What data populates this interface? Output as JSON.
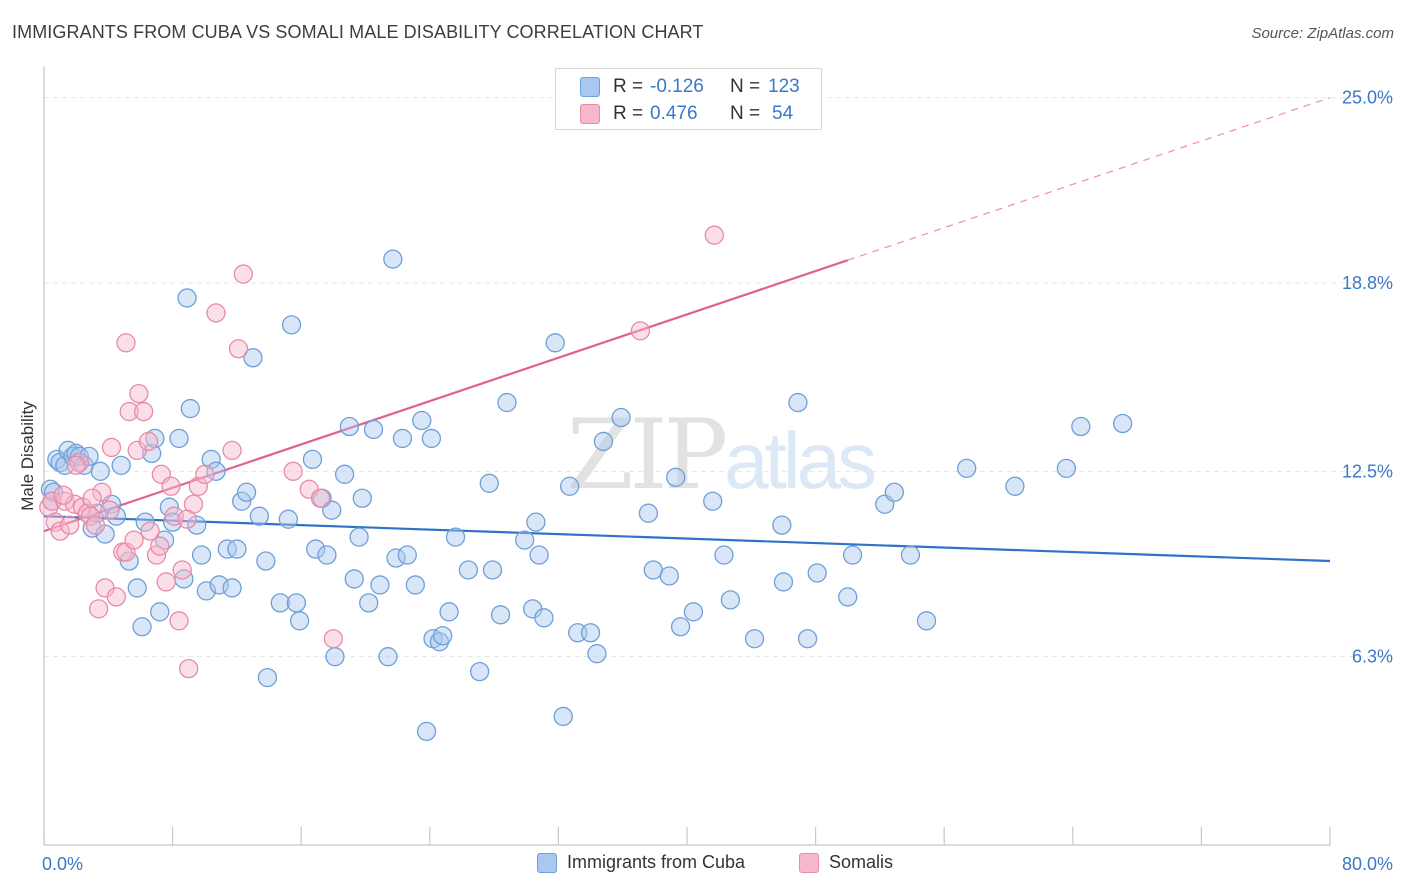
{
  "title": "IMMIGRANTS FROM CUBA VS SOMALI MALE DISABILITY CORRELATION CHART",
  "source": "Source: ZipAtlas.com",
  "watermark": "ZIPatlas",
  "colors": {
    "cuba_fill": "#a8c8f0",
    "cuba_stroke": "#6f9fd8",
    "cuba_line": "#2f72c8",
    "somali_fill": "#f6b8cc",
    "somali_stroke": "#e88aa8",
    "somali_line": "#e0608f",
    "value_text": "#3a78c8",
    "grid": "#e6e6e6"
  },
  "stats": {
    "cuba": {
      "r_label": "R =",
      "r_value": "-0.126",
      "n_label": "N =",
      "n_value": "123"
    },
    "somali": {
      "r_label": "R =",
      "r_value": "0.476",
      "n_label": "N =",
      "n_value": "54"
    }
  },
  "legend": {
    "cuba": "Immigrants from Cuba",
    "somali": "Somalis"
  },
  "chart_data": {
    "type": "scatter",
    "title": "IMMIGRANTS FROM CUBA VS SOMALI MALE DISABILITY CORRELATION CHART",
    "xlabel": "",
    "ylabel": "Male Disability",
    "xlim": [
      0,
      80
    ],
    "ylim": [
      0,
      25.8
    ],
    "x_tick_labels": [
      "0.0%",
      "80.0%"
    ],
    "y_ticks": [
      6.3,
      12.5,
      18.8,
      25.0
    ],
    "y_tick_labels": [
      "6.3%",
      "12.5%",
      "18.8%",
      "25.0%"
    ],
    "grid": true,
    "legend_position": "bottom",
    "series": [
      {
        "name": "Immigrants from Cuba",
        "trend": {
          "x": [
            0,
            80
          ],
          "y": [
            11.0,
            9.5
          ],
          "dashed": false
        },
        "points": [
          [
            0.4,
            11.9
          ],
          [
            0.5,
            11.5
          ],
          [
            0.6,
            11.8
          ],
          [
            0.8,
            12.9
          ],
          [
            1.0,
            12.8
          ],
          [
            1.3,
            12.7
          ],
          [
            1.5,
            13.2
          ],
          [
            1.8,
            13.0
          ],
          [
            2.0,
            13.1
          ],
          [
            2.2,
            13.0
          ],
          [
            2.5,
            12.7
          ],
          [
            2.8,
            13.0
          ],
          [
            3.0,
            10.6
          ],
          [
            3.3,
            11.1
          ],
          [
            3.5,
            12.5
          ],
          [
            3.8,
            10.4
          ],
          [
            4.2,
            11.4
          ],
          [
            4.5,
            11.0
          ],
          [
            4.8,
            12.7
          ],
          [
            5.3,
            9.5
          ],
          [
            5.8,
            8.6
          ],
          [
            6.1,
            7.3
          ],
          [
            6.3,
            10.8
          ],
          [
            6.7,
            13.1
          ],
          [
            6.9,
            13.6
          ],
          [
            7.2,
            7.8
          ],
          [
            7.5,
            10.2
          ],
          [
            7.8,
            11.3
          ],
          [
            8.0,
            10.8
          ],
          [
            8.4,
            13.6
          ],
          [
            8.7,
            8.9
          ],
          [
            8.9,
            18.3
          ],
          [
            9.1,
            14.6
          ],
          [
            9.5,
            10.7
          ],
          [
            9.8,
            9.7
          ],
          [
            10.1,
            8.5
          ],
          [
            10.4,
            12.9
          ],
          [
            10.7,
            12.5
          ],
          [
            10.9,
            8.7
          ],
          [
            11.4,
            9.9
          ],
          [
            11.7,
            8.6
          ],
          [
            12.0,
            9.9
          ],
          [
            12.3,
            11.5
          ],
          [
            12.6,
            11.8
          ],
          [
            13.0,
            16.3
          ],
          [
            13.4,
            11.0
          ],
          [
            13.8,
            9.5
          ],
          [
            13.9,
            5.6
          ],
          [
            14.7,
            8.1
          ],
          [
            15.2,
            10.9
          ],
          [
            15.4,
            17.4
          ],
          [
            15.7,
            8.1
          ],
          [
            15.9,
            7.5
          ],
          [
            16.7,
            12.9
          ],
          [
            16.9,
            9.9
          ],
          [
            17.3,
            11.6
          ],
          [
            17.6,
            9.7
          ],
          [
            17.9,
            11.2
          ],
          [
            18.1,
            6.3
          ],
          [
            18.7,
            12.4
          ],
          [
            19.0,
            14.0
          ],
          [
            19.3,
            8.9
          ],
          [
            19.6,
            10.3
          ],
          [
            19.8,
            11.6
          ],
          [
            20.2,
            8.1
          ],
          [
            20.5,
            13.9
          ],
          [
            20.9,
            8.7
          ],
          [
            21.4,
            6.3
          ],
          [
            21.7,
            19.6
          ],
          [
            21.9,
            9.6
          ],
          [
            22.3,
            13.6
          ],
          [
            22.6,
            9.7
          ],
          [
            23.1,
            8.7
          ],
          [
            23.5,
            14.2
          ],
          [
            23.8,
            3.8
          ],
          [
            24.1,
            13.6
          ],
          [
            24.2,
            6.9
          ],
          [
            24.6,
            6.8
          ],
          [
            24.8,
            7.0
          ],
          [
            25.2,
            7.8
          ],
          [
            25.6,
            10.3
          ],
          [
            26.4,
            9.2
          ],
          [
            27.1,
            5.8
          ],
          [
            27.7,
            12.1
          ],
          [
            27.9,
            9.2
          ],
          [
            28.4,
            7.7
          ],
          [
            28.8,
            14.8
          ],
          [
            29.9,
            10.2
          ],
          [
            30.4,
            7.9
          ],
          [
            30.6,
            10.8
          ],
          [
            30.8,
            9.7
          ],
          [
            31.1,
            7.6
          ],
          [
            31.8,
            16.8
          ],
          [
            32.3,
            4.3
          ],
          [
            32.7,
            12.0
          ],
          [
            33.2,
            7.1
          ],
          [
            34.0,
            7.1
          ],
          [
            34.4,
            6.4
          ],
          [
            34.8,
            13.5
          ],
          [
            35.9,
            14.3
          ],
          [
            37.6,
            11.1
          ],
          [
            37.9,
            9.2
          ],
          [
            38.9,
            9.0
          ],
          [
            39.3,
            12.3
          ],
          [
            39.6,
            7.3
          ],
          [
            40.4,
            7.8
          ],
          [
            41.6,
            11.5
          ],
          [
            42.3,
            9.7
          ],
          [
            42.7,
            8.2
          ],
          [
            44.2,
            6.9
          ],
          [
            45.9,
            10.7
          ],
          [
            46.0,
            8.8
          ],
          [
            46.9,
            14.8
          ],
          [
            47.5,
            6.9
          ],
          [
            48.1,
            9.1
          ],
          [
            50.0,
            8.3
          ],
          [
            50.3,
            9.7
          ],
          [
            52.3,
            11.4
          ],
          [
            52.9,
            11.8
          ],
          [
            53.9,
            9.7
          ],
          [
            54.9,
            7.5
          ],
          [
            57.4,
            12.6
          ],
          [
            60.4,
            12.0
          ],
          [
            63.6,
            12.6
          ],
          [
            64.5,
            14.0
          ],
          [
            67.1,
            14.1
          ]
        ]
      },
      {
        "name": "Somalis",
        "trend": {
          "x": [
            0,
            80
          ],
          "y": [
            10.5,
            25.0
          ],
          "dashed_from_x": 50
        },
        "points": [
          [
            0.3,
            11.3
          ],
          [
            0.5,
            11.5
          ],
          [
            0.7,
            10.8
          ],
          [
            1.0,
            10.5
          ],
          [
            1.3,
            11.5
          ],
          [
            1.6,
            10.7
          ],
          [
            1.9,
            11.4
          ],
          [
            2.2,
            12.8
          ],
          [
            2.4,
            11.3
          ],
          [
            2.7,
            11.1
          ],
          [
            2.9,
            11.0
          ],
          [
            3.2,
            10.7
          ],
          [
            3.4,
            7.9
          ],
          [
            3.6,
            11.8
          ],
          [
            3.8,
            8.6
          ],
          [
            4.1,
            11.2
          ],
          [
            4.2,
            13.3
          ],
          [
            4.5,
            8.3
          ],
          [
            4.9,
            9.8
          ],
          [
            5.1,
            9.8
          ],
          [
            5.1,
            16.8
          ],
          [
            5.3,
            14.5
          ],
          [
            5.6,
            10.2
          ],
          [
            5.8,
            13.2
          ],
          [
            5.9,
            15.1
          ],
          [
            6.2,
            14.5
          ],
          [
            6.5,
            13.5
          ],
          [
            7.0,
            9.7
          ],
          [
            7.2,
            10.0
          ],
          [
            7.3,
            12.4
          ],
          [
            7.6,
            8.8
          ],
          [
            7.9,
            12.0
          ],
          [
            8.1,
            11.0
          ],
          [
            8.4,
            7.5
          ],
          [
            8.6,
            9.2
          ],
          [
            9.0,
            5.9
          ],
          [
            9.3,
            11.4
          ],
          [
            9.6,
            12.0
          ],
          [
            10.0,
            12.4
          ],
          [
            10.7,
            17.8
          ],
          [
            11.7,
            13.2
          ],
          [
            12.1,
            16.6
          ],
          [
            12.4,
            19.1
          ],
          [
            15.5,
            12.5
          ],
          [
            18.0,
            6.9
          ],
          [
            16.5,
            11.9
          ],
          [
            17.2,
            11.6
          ],
          [
            37.1,
            17.2
          ],
          [
            41.7,
            20.4
          ],
          [
            6.6,
            10.5
          ],
          [
            3.0,
            11.6
          ],
          [
            1.2,
            11.7
          ],
          [
            8.9,
            10.9
          ],
          [
            2.0,
            12.7
          ]
        ]
      }
    ]
  }
}
